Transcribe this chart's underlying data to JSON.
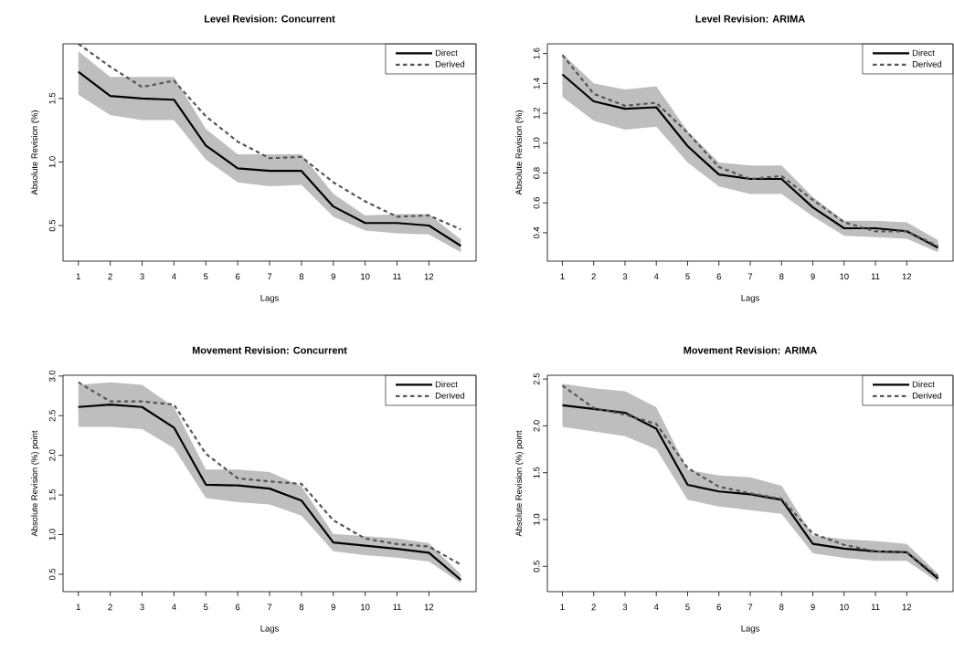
{
  "chart_data": [
    {
      "type": "line",
      "title": "Level Revision: Concurrent",
      "xlabel": "Lags",
      "ylabel": "Absolute Revision (%)",
      "x": [
        1,
        2,
        3,
        4,
        5,
        6,
        7,
        8,
        9,
        10,
        11,
        12,
        13
      ],
      "xlim": [
        0.52,
        13.48
      ],
      "xticks": [
        1,
        2,
        3,
        4,
        5,
        6,
        7,
        8,
        9,
        10,
        11,
        12
      ],
      "ylim": [
        0.22,
        1.93
      ],
      "yticks": [
        0.5,
        {
          "value": 1.0,
          "label": "1.0"
        },
        1.5
      ],
      "legend": "top right",
      "grid": false,
      "series": [
        {
          "name": "Direct",
          "color": "#000000",
          "line_style": "solid",
          "values": [
            1.71,
            1.52,
            1.5,
            1.49,
            1.13,
            0.95,
            0.93,
            0.93,
            0.65,
            0.52,
            0.52,
            0.5,
            0.34
          ],
          "lower": [
            1.53,
            1.37,
            1.33,
            1.33,
            1.02,
            0.84,
            0.81,
            0.82,
            0.57,
            0.46,
            0.44,
            0.43,
            0.29
          ],
          "upper": [
            1.87,
            1.67,
            1.67,
            1.67,
            1.26,
            1.06,
            1.06,
            1.06,
            0.75,
            0.58,
            0.59,
            0.59,
            0.39
          ]
        },
        {
          "name": "Derived",
          "color": "#555555",
          "line_style": "dashed",
          "values": [
            1.93,
            1.75,
            1.59,
            1.64,
            1.36,
            1.16,
            1.03,
            1.04,
            0.84,
            0.69,
            0.57,
            0.58,
            0.47
          ]
        }
      ]
    },
    {
      "type": "line",
      "title": "Level Revision: ARIMA",
      "xlabel": "Lags",
      "ylabel": "Absolute Revision (%)",
      "x": [
        1,
        2,
        3,
        4,
        5,
        6,
        7,
        8,
        9,
        10,
        11,
        12,
        13
      ],
      "xlim": [
        0.52,
        13.48
      ],
      "xticks": [
        1,
        2,
        3,
        4,
        5,
        6,
        7,
        8,
        9,
        10,
        11,
        12
      ],
      "ylim": [
        0.21,
        1.665
      ],
      "yticks": [
        0.4,
        0.6,
        0.8,
        {
          "value": 1.0,
          "label": "1.0"
        },
        1.2,
        1.4,
        1.6
      ],
      "legend": "top right",
      "grid": false,
      "series": [
        {
          "name": "Direct",
          "color": "#000000",
          "line_style": "solid",
          "values": [
            1.46,
            1.28,
            1.23,
            1.24,
            0.98,
            0.79,
            0.76,
            0.76,
            0.57,
            0.43,
            0.43,
            0.41,
            0.3
          ],
          "lower": [
            1.31,
            1.15,
            1.09,
            1.11,
            0.87,
            0.71,
            0.66,
            0.66,
            0.51,
            0.38,
            0.37,
            0.36,
            0.27
          ],
          "upper": [
            1.6,
            1.4,
            1.36,
            1.38,
            1.08,
            0.87,
            0.85,
            0.85,
            0.64,
            0.48,
            0.48,
            0.47,
            0.35
          ]
        },
        {
          "name": "Derived",
          "color": "#555555",
          "line_style": "dashed",
          "values": [
            1.59,
            1.33,
            1.25,
            1.27,
            1.07,
            0.84,
            0.76,
            0.78,
            0.62,
            0.47,
            0.41,
            0.41,
            0.31
          ]
        }
      ]
    },
    {
      "type": "line",
      "title": "Movement Revision: Concurrent",
      "xlabel": "Lags",
      "ylabel": "Absolute Revision (%) point",
      "x": [
        1,
        2,
        3,
        4,
        5,
        6,
        7,
        8,
        9,
        10,
        11,
        12,
        13
      ],
      "xlim": [
        0.52,
        13.48
      ],
      "xticks": [
        1,
        2,
        3,
        4,
        5,
        6,
        7,
        8,
        9,
        10,
        11,
        12
      ],
      "ylim": [
        0.28,
        3.01
      ],
      "yticks": [
        0.5,
        {
          "value": 1.0,
          "label": "1.0"
        },
        1.5,
        {
          "value": 2.0,
          "label": "2.0"
        },
        2.5,
        {
          "value": 3.0,
          "label": "3.0"
        }
      ],
      "legend": "top right",
      "grid": false,
      "series": [
        {
          "name": "Direct",
          "color": "#000000",
          "line_style": "solid",
          "values": [
            2.61,
            2.64,
            2.61,
            2.35,
            1.63,
            1.62,
            1.58,
            1.43,
            0.9,
            0.86,
            0.82,
            0.77,
            0.43
          ],
          "lower": [
            2.36,
            2.36,
            2.33,
            2.09,
            1.46,
            1.41,
            1.38,
            1.24,
            0.79,
            0.74,
            0.71,
            0.66,
            0.39
          ],
          "upper": [
            2.89,
            2.92,
            2.89,
            2.61,
            1.82,
            1.82,
            1.79,
            1.61,
            1.01,
            0.98,
            0.95,
            0.89,
            0.5
          ]
        },
        {
          "name": "Derived",
          "color": "#555555",
          "line_style": "dashed",
          "values": [
            2.92,
            2.68,
            2.68,
            2.64,
            2.02,
            1.71,
            1.67,
            1.64,
            1.18,
            0.95,
            0.88,
            0.85,
            0.62
          ]
        }
      ]
    },
    {
      "type": "line",
      "title": "Movement Revision: ARIMA",
      "xlabel": "Lags",
      "ylabel": "Absolute Revision (%) point",
      "x": [
        1,
        2,
        3,
        4,
        5,
        6,
        7,
        8,
        9,
        10,
        11,
        12,
        13
      ],
      "xlim": [
        0.52,
        13.48
      ],
      "xticks": [
        1,
        2,
        3,
        4,
        5,
        6,
        7,
        8,
        9,
        10,
        11,
        12
      ],
      "ylim": [
        0.23,
        2.54
      ],
      "yticks": [
        0.5,
        {
          "value": 1.0,
          "label": "1.0"
        },
        1.5,
        {
          "value": 2.0,
          "label": "2.0"
        },
        2.5
      ],
      "legend": "top right",
      "grid": false,
      "series": [
        {
          "name": "Direct",
          "color": "#000000",
          "line_style": "solid",
          "values": [
            2.22,
            2.18,
            2.14,
            1.97,
            1.37,
            1.3,
            1.27,
            1.21,
            0.74,
            0.69,
            0.66,
            0.65,
            0.37
          ],
          "lower": [
            1.99,
            1.94,
            1.89,
            1.75,
            1.21,
            1.14,
            1.1,
            1.06,
            0.64,
            0.59,
            0.56,
            0.56,
            0.33
          ],
          "upper": [
            2.45,
            2.4,
            2.37,
            2.2,
            1.53,
            1.47,
            1.45,
            1.36,
            0.83,
            0.79,
            0.77,
            0.74,
            0.42
          ]
        },
        {
          "name": "Derived",
          "color": "#555555",
          "line_style": "dashed",
          "values": [
            2.43,
            2.19,
            2.12,
            2.02,
            1.55,
            1.35,
            1.28,
            1.22,
            0.85,
            0.73,
            0.66,
            0.65,
            0.39
          ]
        }
      ]
    }
  ]
}
